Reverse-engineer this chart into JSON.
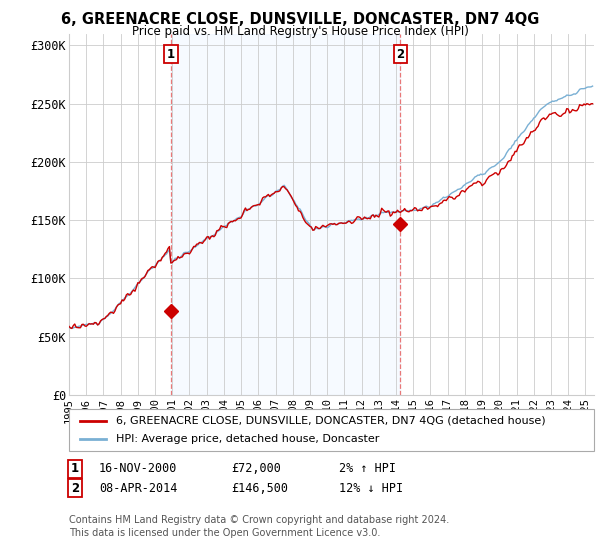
{
  "title": "6, GREENACRE CLOSE, DUNSVILLE, DONCASTER, DN7 4QG",
  "subtitle": "Price paid vs. HM Land Registry's House Price Index (HPI)",
  "ylabel_ticks": [
    "£0",
    "£50K",
    "£100K",
    "£150K",
    "£200K",
    "£250K",
    "£300K"
  ],
  "ytick_values": [
    0,
    50000,
    100000,
    150000,
    200000,
    250000,
    300000
  ],
  "ylim": [
    0,
    310000
  ],
  "sale1_year": 2000.917,
  "sale1_price": 72000,
  "sale1_date": "16-NOV-2000",
  "sale1_label": "2% ↑ HPI",
  "sale2_year": 2014.25,
  "sale2_price": 146500,
  "sale2_date": "08-APR-2014",
  "sale2_label": "12% ↓ HPI",
  "legend_line1": "6, GREENACRE CLOSE, DUNSVILLE, DONCASTER, DN7 4QG (detached house)",
  "legend_line2": "HPI: Average price, detached house, Doncaster",
  "footer1": "Contains HM Land Registry data © Crown copyright and database right 2024.",
  "footer2": "This data is licensed under the Open Government Licence v3.0.",
  "line_color_sale": "#cc0000",
  "line_color_hpi": "#7ab0d4",
  "marker_color": "#cc0000",
  "vline_color": "#e87878",
  "shade_color": "#ddeeff",
  "bg_color": "#ffffff",
  "grid_color": "#cccccc",
  "xlim_start": 1995,
  "xlim_end": 2025.5
}
